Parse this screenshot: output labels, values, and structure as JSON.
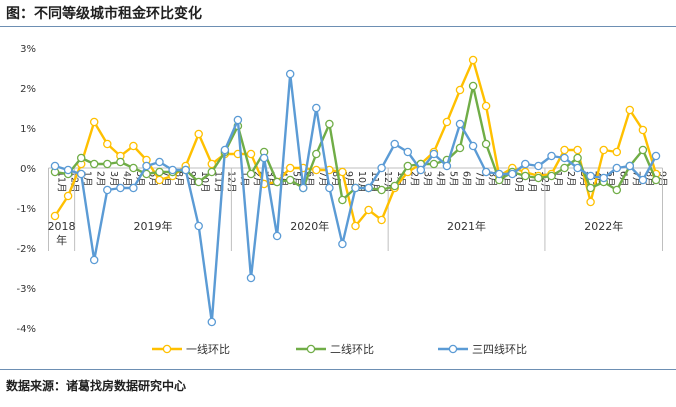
{
  "title": "图：不同等级城市租金环比变化",
  "source": "数据来源：诸葛找房数据研究中心",
  "chart_data": {
    "type": "line",
    "title": "图：不同等级城市租金环比变化",
    "xlabel": "",
    "ylabel": "",
    "ylim": [
      -4,
      3
    ],
    "y_ticks": [
      "3%",
      "2%",
      "1%",
      "0%",
      "-1%",
      "-2%",
      "-3%",
      "-4%"
    ],
    "grid": false,
    "legend_position": "bottom",
    "categories": [
      "11月",
      "12月",
      "1月",
      "2月",
      "3月",
      "4月",
      "5月",
      "6月",
      "7月",
      "8月",
      "9月",
      "10月",
      "11月",
      "12月",
      "1月",
      "2月",
      "3月",
      "4月",
      "5月",
      "6月",
      "7月",
      "8月",
      "9月",
      "10月",
      "11月",
      "12月",
      "1月",
      "2月",
      "3月",
      "4月",
      "5月",
      "6月",
      "7月",
      "8月",
      "9月",
      "10月",
      "11月",
      "12月",
      "1月",
      "2月",
      "3月",
      "4月",
      "5月",
      "6月",
      "7月",
      "8月",
      "9月"
    ],
    "year_groups": [
      {
        "label": "2018年",
        "start": 0,
        "end": 1
      },
      {
        "label": "2019年",
        "start": 2,
        "end": 13
      },
      {
        "label": "2020年",
        "start": 14,
        "end": 25
      },
      {
        "label": "2021年",
        "start": 26,
        "end": 37
      },
      {
        "label": "2022年",
        "start": 38,
        "end": 46
      }
    ],
    "series": [
      {
        "name": "一线环比",
        "color": "#FFC000",
        "values": [
          -1.2,
          -0.7,
          0.1,
          1.15,
          0.6,
          0.3,
          0.55,
          0.2,
          -0.3,
          -0.2,
          0.05,
          0.85,
          0.1,
          0.35,
          0.35,
          0.35,
          -0.4,
          -0.35,
          0.0,
          0.0,
          -0.05,
          -0.05,
          -0.1,
          -1.45,
          -1.05,
          -1.3,
          -0.5,
          -0.1,
          0.1,
          0.4,
          1.15,
          1.95,
          2.7,
          1.55,
          -0.2,
          0.0,
          -0.1,
          -0.2,
          -0.15,
          0.45,
          0.45,
          -0.85,
          0.45,
          0.4,
          1.45,
          0.95,
          -0.15
        ]
      },
      {
        "name": "二线环比",
        "color": "#70AD47",
        "values": [
          -0.1,
          -0.15,
          0.25,
          0.1,
          0.1,
          0.15,
          0.0,
          -0.15,
          -0.1,
          -0.1,
          -0.05,
          -0.35,
          -0.1,
          0.4,
          1.05,
          -0.15,
          0.4,
          -0.35,
          -0.3,
          -0.5,
          0.35,
          1.1,
          -0.8,
          -0.5,
          -0.5,
          -0.55,
          -0.45,
          0.05,
          0.1,
          0.1,
          0.2,
          0.5,
          2.05,
          0.6,
          -0.3,
          -0.1,
          -0.2,
          -0.25,
          -0.2,
          0.0,
          0.25,
          -0.5,
          -0.35,
          -0.55,
          0.05,
          0.45,
          -0.3
        ]
      },
      {
        "name": "三四线环比",
        "color": "#5B9BD5",
        "values": [
          0.05,
          -0.05,
          -0.15,
          -2.3,
          -0.55,
          -0.5,
          -0.5,
          0.05,
          0.15,
          -0.05,
          -0.05,
          -1.45,
          -3.85,
          0.45,
          1.2,
          -2.75,
          0.25,
          -1.7,
          2.35,
          -0.5,
          1.5,
          -0.5,
          -1.9,
          -0.5,
          -0.5,
          0.0,
          0.6,
          0.4,
          -0.05,
          0.35,
          0.05,
          1.1,
          0.55,
          -0.1,
          -0.15,
          -0.15,
          0.1,
          0.05,
          0.3,
          0.25,
          0.0,
          -0.2,
          -0.25,
          0.0,
          0.05,
          -0.3,
          0.3
        ]
      }
    ]
  }
}
